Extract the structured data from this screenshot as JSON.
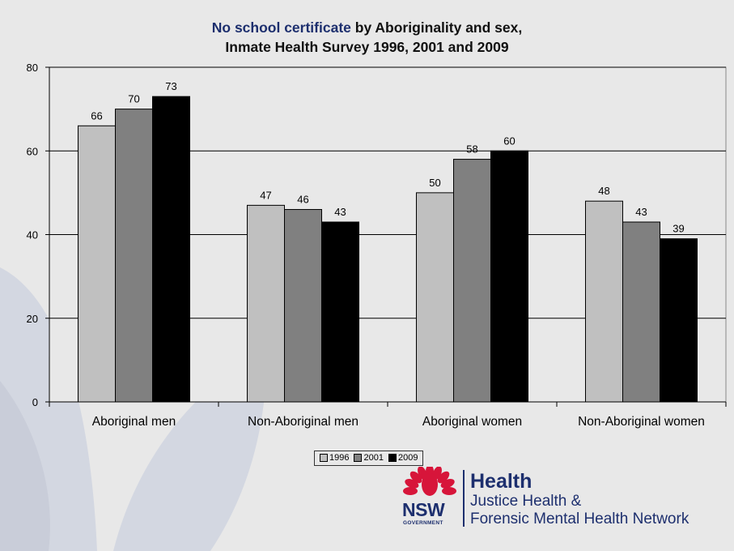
{
  "title": {
    "highlight": "No school certificate",
    "rest": " by Aboriginality and sex,",
    "line2": "Inmate Health Survey 1996, 2001 and 2009"
  },
  "chart_data": {
    "type": "bar",
    "categories": [
      "Aboriginal men",
      "Non-Aboriginal men",
      "Aboriginal women",
      "Non-Aboriginal women"
    ],
    "series": [
      {
        "name": "1996",
        "values": [
          66,
          47,
          50,
          48
        ],
        "color": "#c0c0c0"
      },
      {
        "name": "2001",
        "values": [
          70,
          46,
          58,
          43
        ],
        "color": "#808080"
      },
      {
        "name": "2009",
        "values": [
          73,
          43,
          60,
          39
        ],
        "color": "#000000"
      }
    ],
    "ylim": [
      0,
      80
    ],
    "yticks": [
      0,
      20,
      40,
      60,
      80
    ],
    "grid": true,
    "legend": "bottom",
    "xlabel": "",
    "ylabel": ""
  },
  "logo": {
    "nsw": "NSW",
    "government": "GOVERNMENT",
    "health": "Health",
    "network_line1": "Justice Health &",
    "network_line2": "Forensic Mental Health Network",
    "brand_color": "#1d2f6e",
    "waratah_color": "#d7153a"
  }
}
